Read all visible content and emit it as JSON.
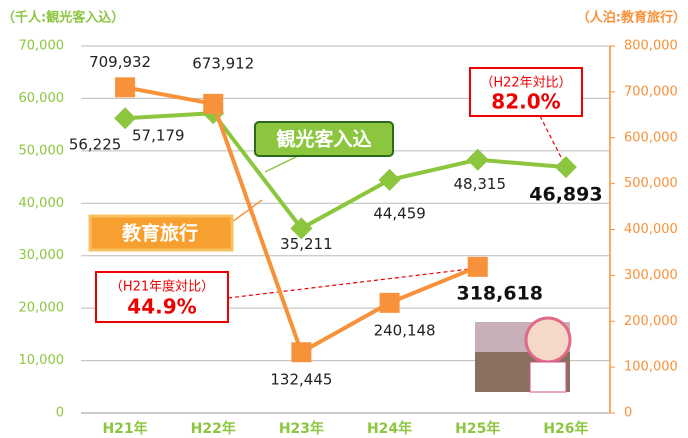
{
  "chart_data": {
    "type": "line",
    "y_label": "（千人:観光客入込）",
    "y2_label": "（人泊:教育旅行）",
    "categories": [
      "H21年",
      "H22年",
      "H23年",
      "H24年",
      "H25年",
      "H26年"
    ],
    "ylim": [
      0,
      70000
    ],
    "yticks": [
      0,
      {
        "value": 10000,
        "label": "10,000"
      },
      {
        "value": 20000,
        "label": "20,000"
      },
      {
        "value": 30000,
        "label": "30,000"
      },
      {
        "value": 40000,
        "label": "40,000"
      },
      {
        "value": 50000,
        "label": "50,000"
      },
      {
        "value": 60000,
        "label": "60,000"
      },
      {
        "value": 70000,
        "label": "70,000"
      }
    ],
    "y2lim": [
      0,
      800000
    ],
    "y2ticks": [
      0,
      {
        "value": 100000,
        "label": "100,000"
      },
      {
        "value": 200000,
        "label": "200,000"
      },
      {
        "value": 300000,
        "label": "300,000"
      },
      {
        "value": 400000,
        "label": "400,000"
      },
      {
        "value": 500000,
        "label": "500,000"
      },
      {
        "value": 600000,
        "label": "600,000"
      },
      {
        "value": 700000,
        "label": "700,000"
      },
      {
        "value": 800000,
        "label": "800,000"
      }
    ],
    "grid": true,
    "series": [
      {
        "name": "観光客入込",
        "color": "#8cc63f",
        "marker": "diamond",
        "values": [
          56225,
          57179,
          35211,
          44459,
          48315,
          46893
        ],
        "value_labels": [
          "56,225",
          "57,179",
          "35,211",
          "44,459",
          "48,315",
          "46,893"
        ]
      },
      {
        "name": "教育旅行",
        "color": "#f7923a",
        "marker": "square",
        "axis": "y2",
        "values": [
          709932,
          673912,
          132445,
          240148,
          318618,
          null
        ],
        "value_labels": [
          "709,932",
          "673,912",
          "132,445",
          "240,148",
          "318,618",
          null
        ]
      }
    ],
    "annotations": [
      {
        "text": "（H22年対比）",
        "value": "82.0%"
      },
      {
        "text": "（H21年度対比）",
        "value": "44.9%"
      }
    ]
  }
}
